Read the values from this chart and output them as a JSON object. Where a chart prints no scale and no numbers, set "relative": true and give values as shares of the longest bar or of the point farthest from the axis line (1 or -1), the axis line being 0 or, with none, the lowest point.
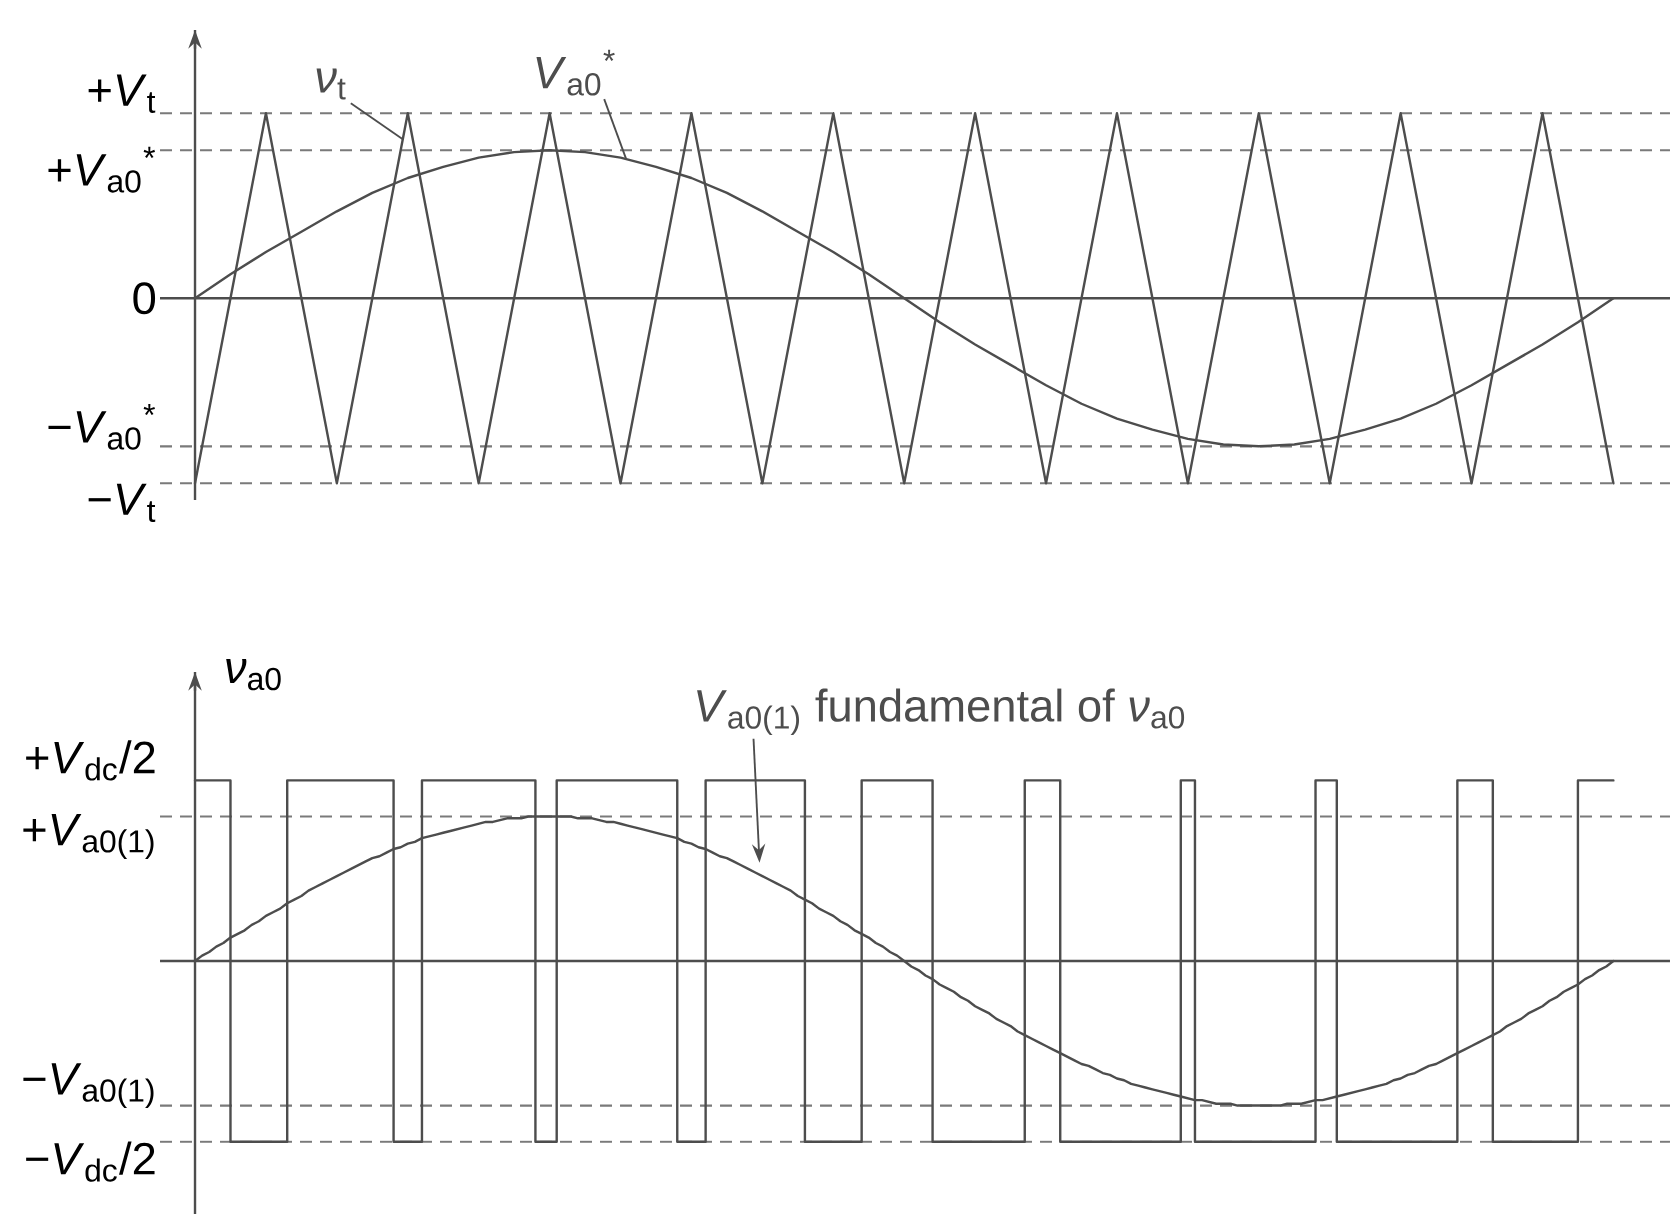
{
  "chart_data": [
    {
      "type": "line",
      "relative": true,
      "tick_labels": false,
      "categories": [
        null,
        null,
        null,
        null,
        null,
        null,
        null,
        null,
        null,
        null,
        null,
        null,
        null,
        null,
        null,
        null,
        null,
        null,
        null,
        null,
        null,
        null,
        null,
        null,
        null,
        null,
        null,
        null,
        null,
        null,
        null,
        null,
        null,
        null,
        null,
        null,
        null,
        null,
        null,
        null,
        null
      ],
      "series": [
        {
          "name": "*ν*$_{t}$",
          "color": "#4d4d4d",
          "values": [
            -1,
            0,
            1,
            0,
            -1,
            0,
            1,
            0,
            -1,
            0,
            1,
            0,
            -1,
            0,
            1,
            0,
            -1,
            0,
            1,
            0,
            -1,
            0,
            1,
            0,
            -1,
            0,
            1,
            0,
            -1,
            0,
            1,
            0,
            -1,
            0,
            1,
            0,
            -1,
            0,
            1,
            0,
            -1
          ]
        },
        {
          "name": "*V*$_{a0}$$^{*}$",
          "color": "#4d4d4d",
          "values": [
            0,
            0.13,
            0.25,
            0.36,
            0.47,
            0.57,
            0.65,
            0.71,
            0.76,
            0.79,
            0.8,
            0.79,
            0.76,
            0.71,
            0.65,
            0.57,
            0.47,
            0.36,
            0.25,
            0.13,
            0,
            -0.13,
            -0.25,
            -0.36,
            -0.47,
            -0.57,
            -0.65,
            -0.71,
            -0.76,
            -0.79,
            -0.8,
            -0.79,
            -0.76,
            -0.71,
            -0.65,
            -0.57,
            -0.47,
            -0.36,
            -0.25,
            -0.13,
            0
          ]
        }
      ],
      "ref_lines": [
        {
          "axis": "y",
          "value": 1,
          "label": "+*V*$_{t}$",
          "line_style": "dashed",
          "color": "#7a7a7a"
        },
        {
          "axis": "y",
          "value": 0.8,
          "label": "+*V*$_{a0}$$^{*}$",
          "line_style": "dashed",
          "color": "#7a7a7a"
        },
        {
          "axis": "y",
          "value": 0,
          "label": "0",
          "line_style": "solid",
          "color": "#4d4d4d"
        },
        {
          "axis": "y",
          "value": -0.8,
          "label": "−*V*$_{a0}$$^{*}$",
          "line_style": "dashed",
          "color": "#7a7a7a"
        },
        {
          "axis": "y",
          "value": -1,
          "label": "−*V*$_{t}$",
          "line_style": "dashed",
          "color": "#7a7a7a"
        }
      ]
    },
    {
      "type": "line",
      "relative": true,
      "tick_labels": false,
      "ylabel": "*ν*$_{a0}$",
      "categories": [
        null,
        null,
        null,
        null,
        null,
        null,
        null,
        null,
        null,
        null,
        null,
        null,
        null,
        null,
        null,
        null,
        null,
        null,
        null,
        null,
        null,
        null,
        null,
        null,
        null,
        null,
        null,
        null,
        null,
        null,
        null,
        null,
        null,
        null,
        null,
        null,
        null,
        null,
        null,
        null,
        null,
        null,
        null,
        null,
        null,
        null,
        null,
        null,
        null,
        null,
        null,
        null,
        null,
        null,
        null,
        null,
        null,
        null,
        null,
        null,
        null,
        null,
        null,
        null,
        null,
        null,
        null,
        null,
        null,
        null,
        null,
        null,
        null,
        null,
        null,
        null,
        null,
        null,
        null,
        null,
        null,
        null,
        null,
        null,
        null,
        null,
        null,
        null,
        null,
        null,
        null,
        null,
        null,
        null,
        null,
        null,
        null,
        null,
        null,
        null,
        null,
        null,
        null,
        null,
        null,
        null,
        null,
        null,
        null,
        null,
        null,
        null,
        null,
        null,
        null,
        null,
        null,
        null,
        null,
        null,
        null,
        null,
        null,
        null,
        null,
        null,
        null,
        null,
        null,
        null,
        null,
        null,
        null,
        null,
        null,
        null,
        null,
        null,
        null,
        null,
        null,
        null,
        null,
        null,
        null,
        null,
        null,
        null,
        null,
        null,
        null,
        null,
        null,
        null,
        null,
        null,
        null,
        null,
        null,
        null,
        null,
        null,
        null,
        null,
        null,
        null,
        null,
        null,
        null,
        null,
        null,
        null,
        null,
        null,
        null,
        null,
        null,
        null,
        null,
        null,
        null,
        null,
        null,
        null,
        null,
        null,
        null,
        null,
        null,
        null,
        null,
        null,
        null,
        null,
        null,
        null,
        null,
        null,
        null,
        null,
        null
      ],
      "series": [
        {
          "type": "step",
          "color": "#4d4d4d",
          "values": [
            1,
            1,
            1,
            1,
            1,
            -1,
            -1,
            -1,
            -1,
            -1,
            -1,
            -1,
            -1,
            1,
            1,
            1,
            1,
            1,
            1,
            1,
            1,
            1,
            1,
            1,
            1,
            1,
            1,
            1,
            -1,
            -1,
            -1,
            -1,
            1,
            1,
            1,
            1,
            1,
            1,
            1,
            1,
            1,
            1,
            1,
            1,
            1,
            1,
            1,
            1,
            -1,
            -1,
            -1,
            1,
            1,
            1,
            1,
            1,
            1,
            1,
            1,
            1,
            1,
            1,
            1,
            1,
            1,
            1,
            1,
            1,
            -1,
            -1,
            -1,
            -1,
            1,
            1,
            1,
            1,
            1,
            1,
            1,
            1,
            1,
            1,
            1,
            1,
            1,
            1,
            -1,
            -1,
            -1,
            -1,
            -1,
            -1,
            -1,
            -1,
            1,
            1,
            1,
            1,
            1,
            1,
            1,
            1,
            1,
            1,
            -1,
            -1,
            -1,
            -1,
            -1,
            -1,
            -1,
            -1,
            -1,
            -1,
            -1,
            -1,
            -1,
            1,
            1,
            1,
            1,
            1,
            -1,
            -1,
            -1,
            -1,
            -1,
            -1,
            -1,
            -1,
            -1,
            -1,
            -1,
            -1,
            -1,
            -1,
            -1,
            -1,
            -1,
            1,
            1,
            -1,
            -1,
            -1,
            -1,
            -1,
            -1,
            -1,
            -1,
            -1,
            -1,
            -1,
            -1,
            -1,
            -1,
            -1,
            -1,
            -1,
            1,
            1,
            1,
            -1,
            -1,
            -1,
            -1,
            -1,
            -1,
            -1,
            -1,
            -1,
            -1,
            -1,
            -1,
            -1,
            -1,
            -1,
            -1,
            -1,
            1,
            1,
            1,
            1,
            1,
            -1,
            -1,
            -1,
            -1,
            -1,
            -1,
            -1,
            -1,
            -1,
            -1,
            -1,
            -1,
            1,
            1,
            1,
            1,
            1,
            1
          ]
        },
        {
          "name": "*V*$_{a0(1)}$ fundamental of *ν*$_{a0}$",
          "color": "#4d4d4d",
          "values": [
            0,
            0.03,
            0.05,
            0.08,
            0.1,
            0.13,
            0.15,
            0.17,
            0.2,
            0.22,
            0.25,
            0.27,
            0.29,
            0.32,
            0.34,
            0.36,
            0.39,
            0.41,
            0.43,
            0.45,
            0.47,
            0.49,
            0.51,
            0.53,
            0.55,
            0.57,
            0.58,
            0.6,
            0.62,
            0.63,
            0.65,
            0.66,
            0.68,
            0.69,
            0.7,
            0.71,
            0.72,
            0.73,
            0.74,
            0.75,
            0.76,
            0.77,
            0.77,
            0.78,
            0.79,
            0.79,
            0.79,
            0.8,
            0.8,
            0.8,
            0.8,
            0.8,
            0.8,
            0.8,
            0.79,
            0.79,
            0.79,
            0.78,
            0.77,
            0.77,
            0.76,
            0.75,
            0.74,
            0.73,
            0.72,
            0.71,
            0.7,
            0.69,
            0.68,
            0.66,
            0.65,
            0.63,
            0.62,
            0.6,
            0.58,
            0.57,
            0.55,
            0.53,
            0.51,
            0.49,
            0.47,
            0.45,
            0.43,
            0.41,
            0.39,
            0.36,
            0.34,
            0.32,
            0.29,
            0.27,
            0.25,
            0.22,
            0.2,
            0.17,
            0.15,
            0.13,
            0.1,
            0.08,
            0.05,
            0.03,
            0,
            -0.03,
            -0.05,
            -0.08,
            -0.1,
            -0.13,
            -0.15,
            -0.17,
            -0.2,
            -0.22,
            -0.25,
            -0.27,
            -0.29,
            -0.32,
            -0.34,
            -0.36,
            -0.39,
            -0.41,
            -0.43,
            -0.45,
            -0.47,
            -0.49,
            -0.51,
            -0.53,
            -0.55,
            -0.57,
            -0.58,
            -0.6,
            -0.62,
            -0.63,
            -0.65,
            -0.66,
            -0.68,
            -0.69,
            -0.7,
            -0.71,
            -0.72,
            -0.73,
            -0.74,
            -0.75,
            -0.76,
            -0.77,
            -0.77,
            -0.78,
            -0.79,
            -0.79,
            -0.79,
            -0.8,
            -0.8,
            -0.8,
            -0.8,
            -0.8,
            -0.8,
            -0.8,
            -0.79,
            -0.79,
            -0.79,
            -0.78,
            -0.77,
            -0.77,
            -0.76,
            -0.75,
            -0.74,
            -0.73,
            -0.72,
            -0.71,
            -0.7,
            -0.69,
            -0.68,
            -0.66,
            -0.65,
            -0.63,
            -0.62,
            -0.6,
            -0.58,
            -0.57,
            -0.55,
            -0.53,
            -0.51,
            -0.49,
            -0.47,
            -0.45,
            -0.43,
            -0.41,
            -0.39,
            -0.36,
            -0.34,
            -0.32,
            -0.29,
            -0.27,
            -0.25,
            -0.22,
            -0.2,
            -0.17,
            -0.15,
            -0.13,
            -0.1,
            -0.08,
            -0.05,
            -0.03,
            0
          ]
        }
      ],
      "annotations": [
        "+*V*$_{dc}$/2"
      ],
      "ref_lines": [
        {
          "axis": "y",
          "value": 0.8,
          "label": "+*V*$_{a0(1)}$",
          "line_style": "dashed",
          "color": "#7a7a7a"
        },
        {
          "axis": "y",
          "value": -0.8,
          "label": "−*V*$_{a0(1)}$",
          "line_style": "dashed",
          "color": "#7a7a7a"
        },
        {
          "axis": "y",
          "value": -1,
          "label": "−*V*$_{dc}$/2",
          "line_style": "dashed",
          "color": "#7a7a7a"
        }
      ]
    }
  ]
}
